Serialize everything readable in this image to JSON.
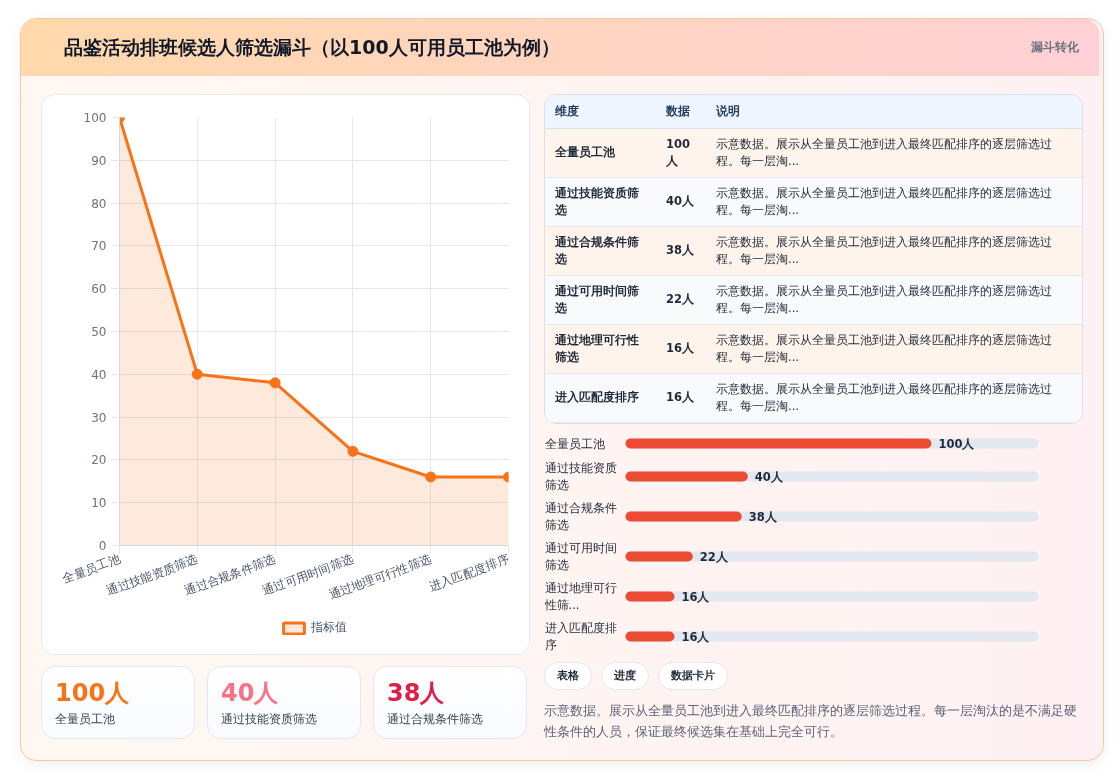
{
  "chart_data": [
    {
      "type": "other",
      "title": "品鉴活动排班候选人筛选漏斗（以100人可用员工池为例）",
      "subtitle": "漏斗转化"
    },
    {
      "type": "area",
      "categories": [
        "全量员工池",
        "通过技能资质筛选",
        "通过合规条件筛选",
        "通过可用时间筛选",
        "通过地理可行性筛选",
        "进入匹配度排序"
      ],
      "series": [
        {
          "name": "指标值",
          "color": "#f97316",
          "values": [
            100,
            40,
            38,
            22,
            16,
            16
          ]
        }
      ],
      "ylim": [
        0,
        100
      ],
      "yticks": [
        0,
        10,
        20,
        30,
        40,
        50,
        60,
        70,
        80,
        90,
        100
      ],
      "grid": true,
      "legend": "bottom",
      "marker": "circle",
      "line_style": "solid"
    },
    {
      "type": "other",
      "categories": [
        "全量员工池",
        "通过技能资质筛选",
        "通过合规条件筛选",
        "通过可用时间筛选",
        "通过地理可行性筛选",
        "进入匹配度排序"
      ],
      "value_labels": [
        "100人",
        "40人",
        "38人",
        "22人",
        "16人",
        "16人"
      ],
      "annotations": [
        "维度",
        "数据",
        "说明",
        "示意数据。展示从全量员工池到进入最终匹配排序的逐层筛选过程。每一层淘...",
        "示意数据。展示从全量员工池到进入最终匹配排序的逐层筛选过程。每一层淘...",
        "示意数据。展示从全量员工池到进入最终匹配排序的逐层筛选过程。每一层淘...",
        "示意数据。展示从全量员工池到进入最终匹配排序的逐层筛选过程。每一层淘...",
        "示意数据。展示从全量员工池到进入最终匹配排序的逐层筛选过程。每一层淘...",
        "示意数据。展示从全量员工池到进入最终匹配排序的逐层筛选过程。每一层淘..."
      ]
    },
    {
      "type": "bar",
      "orientation": "horizontal",
      "categories": [
        "全量员工池",
        "通过技能资质筛选",
        "通过合规条件筛选",
        "通过可用时间筛选",
        "通过地理可行性筛...",
        "进入匹配度排序"
      ],
      "values": [
        100,
        40,
        38,
        22,
        16,
        16
      ],
      "value_labels": [
        "100人",
        "40人",
        "38人",
        "22人",
        "16人",
        "16人"
      ],
      "color": "#ec4a33",
      "xlim": [
        0,
        135
      ],
      "tick_labels": "y"
    },
    {
      "type": "other",
      "categories": [
        "全量员工池",
        "通过技能资质筛选",
        "通过合规条件筛选"
      ],
      "value_labels": [
        "100人",
        "40人",
        "38人"
      ]
    },
    {
      "type": "other",
      "annotations": [
        "表格",
        "进度",
        "数据卡片",
        "示意数据。展示从全量员工池到进入最终匹配排序的逐层筛选过程。每一层淘汰的是不满足硬性条件的人员，保证最终候选集在基础上完全可行。"
      ]
    }
  ]
}
